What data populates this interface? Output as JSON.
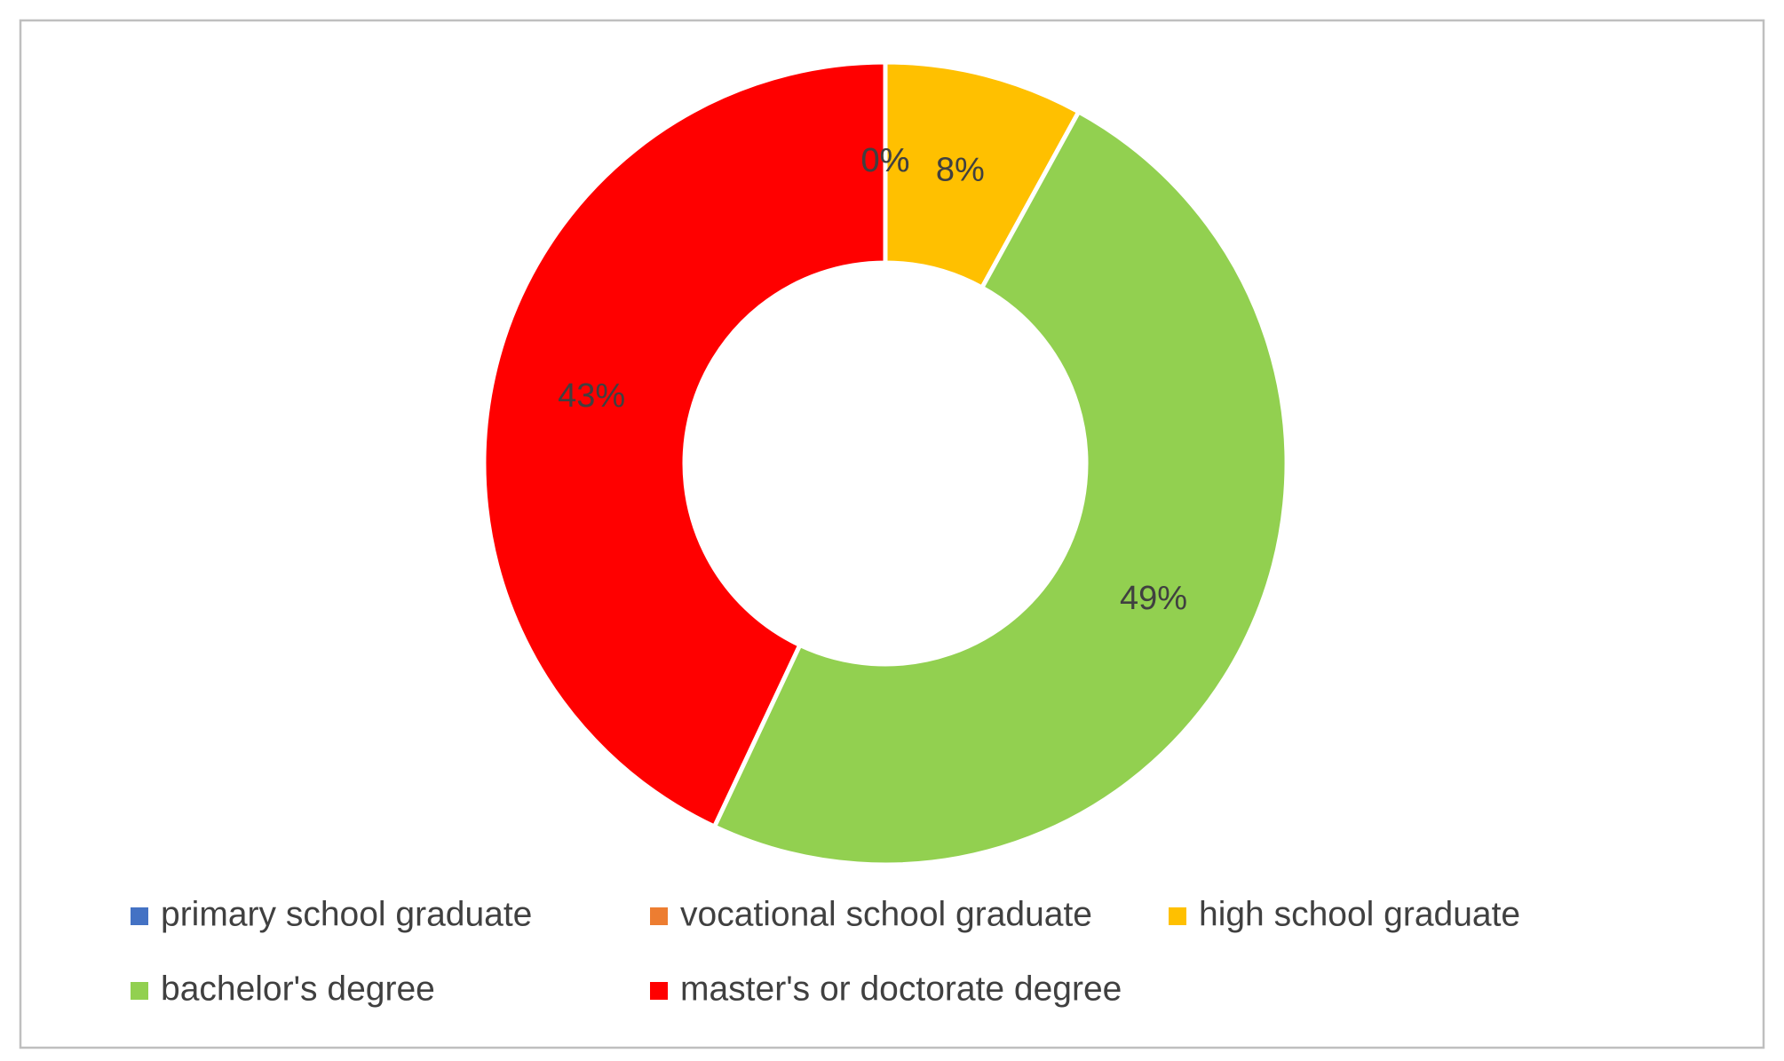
{
  "chart_data": {
    "type": "donut",
    "categories": [
      "primary school graduate",
      "vocational school graduate",
      "high school graduate",
      "bachelor's degree",
      "master's or doctorate degree"
    ],
    "values": [
      0,
      0,
      8,
      49,
      43
    ],
    "value_labels": [
      "0%",
      "0%",
      "8%",
      "49%",
      "43%"
    ],
    "colors": [
      "#4472c4",
      "#ed7d31",
      "#ffc000",
      "#92d050",
      "#ff0000"
    ],
    "legend": "bottom"
  }
}
